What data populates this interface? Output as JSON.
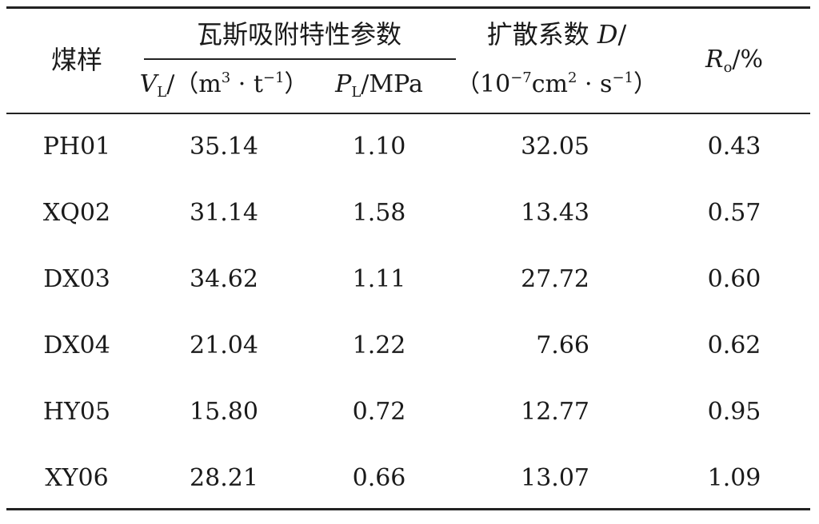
{
  "headers": {
    "sample": "煤样",
    "group": "瓦斯吸附特性参数",
    "vl": {
      "var": "V",
      "sub": "L",
      "pre": "/（m",
      "exp1": "3",
      "mid": " · t",
      "exp2": "−1",
      "post": "）"
    },
    "pl": {
      "var": "P",
      "sub": "L",
      "post": "/MPa"
    },
    "diffusion": {
      "line1_text": "扩散系数 ",
      "line1_var": "D",
      "line1_post": "/",
      "pre": "（10",
      "exp1": "−7",
      "mid1": "cm",
      "exp2": "2",
      "mid2": " · s",
      "exp3": "−1",
      "post": "）"
    },
    "ro": {
      "var": "R",
      "sub": "o",
      "post": "/%"
    }
  },
  "rows": [
    {
      "sample": "PH01",
      "vl": "35.14",
      "pl": "1.10",
      "d": "32.05",
      "ro": "0.43"
    },
    {
      "sample": "XQ02",
      "vl": "31.14",
      "pl": "1.58",
      "d": "13.43",
      "ro": "0.57"
    },
    {
      "sample": "DX03",
      "vl": "34.62",
      "pl": "1.11",
      "d": "27.72",
      "ro": "0.60"
    },
    {
      "sample": "DX04",
      "vl": "21.04",
      "pl": "1.22",
      "d": "7.66",
      "ro": "0.62"
    },
    {
      "sample": "HY05",
      "vl": "15.80",
      "pl": "0.72",
      "d": "12.77",
      "ro": "0.95"
    },
    {
      "sample": "XY06",
      "vl": "28.21",
      "pl": "0.66",
      "d": "13.07",
      "ro": "1.09"
    }
  ]
}
